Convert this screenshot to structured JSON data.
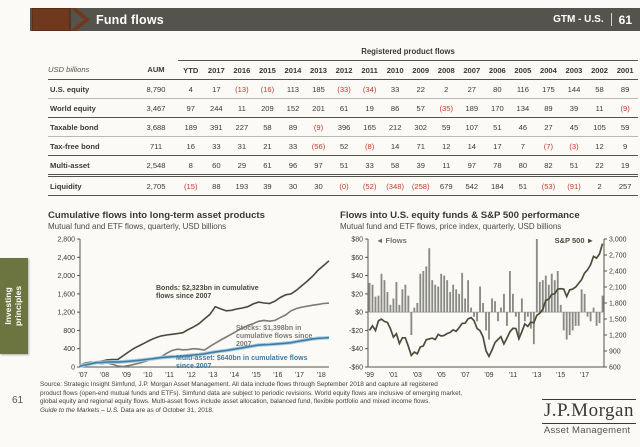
{
  "header": {
    "title": "Fund flows",
    "gtm_label": "GTM - U.S.",
    "page": "61"
  },
  "sidebar": {
    "label": "Investing\nprinciples",
    "page_number": "61"
  },
  "colors": {
    "accent_brown": "#70391e",
    "header_gray": "#55544c",
    "olive_tab": "#6c753f",
    "bonds_line": "#4a4a3c",
    "stocks_line": "#7c7c72",
    "multi_line": "#3f7ca5",
    "multi_halo": "#a9cedf",
    "bars": "#8a8a84",
    "sp_line": "#4d4d3b",
    "negative_red": "#c13b2a"
  },
  "table": {
    "group_header": "Registered product flows",
    "unit_label": "USD billions",
    "columns": [
      "AUM",
      "YTD",
      "2017",
      "2016",
      "2015",
      "2014",
      "2013",
      "2012",
      "2011",
      "2010",
      "2009",
      "2008",
      "2007",
      "2006",
      "2005",
      "2004",
      "2003",
      "2002",
      "2001"
    ],
    "rows": [
      {
        "label": "U.S. equity",
        "sep": "thin",
        "aum": "8,790",
        "values": [
          "4",
          "17",
          "(13)",
          "(16)",
          "113",
          "185",
          "(33)",
          "(34)",
          "33",
          "22",
          "2",
          "27",
          "80",
          "116",
          "175",
          "144",
          "58",
          "89"
        ]
      },
      {
        "label": "World equity",
        "sep": "thick",
        "aum": "3,467",
        "values": [
          "97",
          "244",
          "11",
          "209",
          "152",
          "201",
          "61",
          "19",
          "86",
          "57",
          "(35)",
          "189",
          "170",
          "134",
          "89",
          "39",
          "11",
          "(9)"
        ]
      },
      {
        "label": "Taxable bond",
        "sep": "thin",
        "aum": "3,688",
        "values": [
          "189",
          "391",
          "227",
          "58",
          "89",
          "(9)",
          "396",
          "165",
          "212",
          "302",
          "59",
          "107",
          "51",
          "46",
          "27",
          "45",
          "105",
          "59"
        ]
      },
      {
        "label": "Tax-free bond",
        "sep": "thick",
        "aum": "711",
        "values": [
          "16",
          "33",
          "31",
          "21",
          "33",
          "(56)",
          "52",
          "(8)",
          "14",
          "71",
          "12",
          "14",
          "17",
          "7",
          "(7)",
          "(3)",
          "12",
          "9"
        ]
      },
      {
        "label": "Multi-asset",
        "sep": "double",
        "aum": "2,548",
        "values": [
          "8",
          "60",
          "29",
          "61",
          "96",
          "97",
          "51",
          "33",
          "58",
          "39",
          "11",
          "97",
          "78",
          "80",
          "82",
          "51",
          "22",
          "19"
        ]
      },
      {
        "label": "Liquidity",
        "sep": "end",
        "aum": "2,705",
        "values": [
          "(15)",
          "88",
          "193",
          "39",
          "30",
          "30",
          "(0)",
          "(52)",
          "(348)",
          "(258)",
          "679",
          "542",
          "184",
          "51",
          "(53)",
          "(91)",
          "2",
          "257"
        ]
      }
    ]
  },
  "chart_data": [
    {
      "type": "line",
      "title": "Cumulative flows into long-term asset products",
      "subtitle": "Mutual fund and ETF flows, quarterly, USD billions",
      "ylim": [
        0,
        2800
      ],
      "y_ticks": [
        "2,800",
        "2,400",
        "2,000",
        "1,600",
        "1,200",
        "800",
        "400",
        "0"
      ],
      "x_labels": [
        "'07",
        "'08",
        "'09",
        "'10",
        "'11",
        "'12",
        "'13",
        "'14",
        "'15",
        "'16",
        "'17",
        "'18"
      ],
      "x_label_every": 4,
      "grid": false,
      "annotations": {
        "bonds": "Bonds: $2,323bn in cumulative flows since 2007",
        "stocks": "Stocks: $1,398bn in cumulative flows since 2007",
        "multi": "Multi-asset: $640bn in cumulative flows since 2007"
      },
      "series": [
        {
          "name": "Bonds",
          "color": "#4a4a3c",
          "values": [
            25,
            55,
            85,
            107,
            130,
            155,
            165,
            166,
            250,
            330,
            410,
            468,
            530,
            590,
            640,
            680,
            700,
            715,
            730,
            750,
            820,
            880,
            950,
            1052,
            1150,
            1320,
            1270,
            1230,
            1240,
            1270,
            1290,
            1320,
            1380,
            1420,
            1400,
            1390,
            1440,
            1520,
            1580,
            1600,
            1680,
            1780,
            1880,
            1990,
            2120,
            2220,
            2323
          ]
        },
        {
          "name": "Stocks",
          "color": "#7c7c72",
          "values": [
            40,
            90,
            110,
            91,
            70,
            90,
            60,
            20,
            10,
            30,
            60,
            85,
            120,
            160,
            170,
            224,
            300,
            360,
            390,
            377,
            380,
            400,
            390,
            371,
            450,
            520,
            590,
            656,
            720,
            790,
            850,
            908,
            950,
            1000,
            1020,
            1001,
            1020,
            1080,
            1140,
            1230,
            1280,
            1310,
            1330,
            1352,
            1370,
            1390,
            1398
          ]
        },
        {
          "name": "Multi-asset",
          "color": "#3f7ca5",
          "halo": "#a9cedf",
          "values": [
            20,
            45,
            70,
            97,
            100,
            110,
            112,
            108,
            115,
            125,
            135,
            147,
            160,
            175,
            190,
            205,
            215,
            225,
            230,
            238,
            250,
            262,
            274,
            289,
            310,
            330,
            345,
            360,
            380,
            400,
            420,
            441,
            460,
            478,
            488,
            492,
            500,
            510,
            520,
            532,
            555,
            575,
            595,
            615,
            628,
            635,
            640
          ]
        }
      ]
    },
    {
      "type": "bar+line",
      "title": "Flows into U.S. equity funds & S&P 500 performance",
      "subtitle": "Mutual fund and ETF flows, price index, quarterly, USD billions",
      "legend_left": "◄ Flows",
      "legend_right": "S&P 500 ►",
      "left_ylim": [
        -60,
        80
      ],
      "left_ticks": [
        "$80",
        "$60",
        "$40",
        "$20",
        "$0",
        "-$20",
        "-$40",
        "-$60"
      ],
      "right_ylim": [
        600,
        3000
      ],
      "right_ticks": [
        "3,000",
        "2,700",
        "2,400",
        "2,100",
        "1,800",
        "1,500",
        "1,200",
        "900",
        "600"
      ],
      "x_labels": [
        "'99",
        "'01",
        "'03",
        "'05",
        "'07",
        "'09",
        "'11",
        "'13",
        "'15",
        "'17"
      ],
      "x_label_every": 8,
      "grid": false,
      "bars_name": "Flows",
      "bars": [
        32,
        30,
        17,
        18,
        42,
        35,
        22,
        8,
        15,
        33,
        8,
        25,
        30,
        18,
        -25,
        5,
        10,
        42,
        45,
        50,
        70,
        35,
        30,
        28,
        42,
        40,
        35,
        22,
        30,
        25,
        20,
        43,
        15,
        35,
        5,
        -5,
        -10,
        28,
        10,
        -20,
        -30,
        15,
        12,
        -10,
        5,
        20,
        -15,
        45,
        20,
        -5,
        -30,
        15,
        -10,
        -5,
        -18,
        -35,
        80,
        33,
        35,
        40,
        30,
        42,
        35,
        45,
        8,
        -20,
        -30,
        -25,
        -20,
        -15,
        -15,
        25,
        20,
        -5,
        -10,
        5,
        -15,
        -12,
        18
      ],
      "line_name": "S&P 500",
      "line": [
        1286,
        1372,
        1283,
        1469,
        1498,
        1455,
        1436,
        1320,
        1160,
        1224,
        1041,
        1148,
        1147,
        990,
        815,
        880,
        848,
        975,
        996,
        1112,
        1126,
        1141,
        1115,
        1212,
        1181,
        1191,
        1229,
        1248,
        1295,
        1270,
        1336,
        1418,
        1421,
        1503,
        1527,
        1468,
        1323,
        1280,
        1166,
        903,
        798,
        919,
        1057,
        1115,
        1169,
        1031,
        1141,
        1258,
        1326,
        1321,
        1131,
        1258,
        1408,
        1362,
        1441,
        1426,
        1569,
        1606,
        1682,
        1848,
        1872,
        1960,
        1972,
        2059,
        2068,
        2063,
        1920,
        2044,
        2060,
        2099,
        2168,
        2239,
        2363,
        2423,
        2519,
        2674,
        2641,
        2718,
        2914
      ]
    }
  ],
  "footer": {
    "lines": [
      "Source: Strategic Insight Simfund, J.P. Morgan Asset Management. All data include flows through September 2018 and capture all registered",
      "product flows (open-end mutual funds and ETFs). Simfund data are subject to periodic revisions. World equity flows are inclusive of emerging market,",
      "global equity and regional equity flows. Multi-asset flows include asset allocation, balanced fund, flexible portfolio and mixed income flows."
    ],
    "gtm_italic": "Guide to the Markets – U.S.",
    "gtm_rest": " Data are as of October 31, 2018."
  },
  "logo": {
    "main": "J.P.Morgan",
    "sub": "Asset Management"
  }
}
